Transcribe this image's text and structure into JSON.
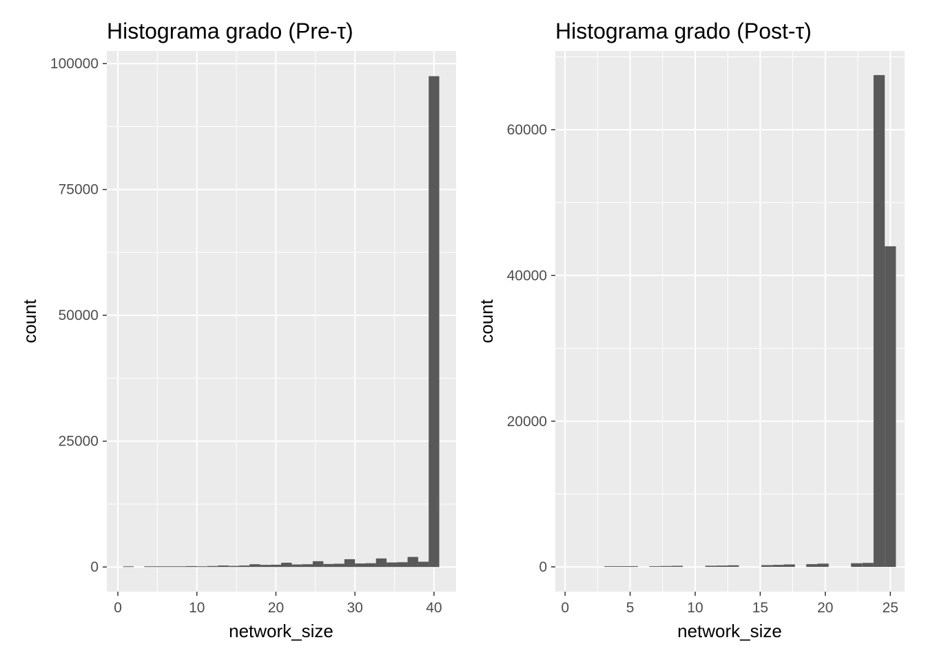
{
  "chart_data": [
    {
      "type": "bar",
      "title": "Histograma grado (Pre-τ)",
      "xlabel": "network_size",
      "ylabel": "count",
      "xlim": [
        -1.4,
        42.8
      ],
      "ylim": [
        -4900,
        102500
      ],
      "x_ticks": [
        0,
        10,
        20,
        30,
        40
      ],
      "x_tick_labels": [
        "0",
        "10",
        "20",
        "30",
        "40"
      ],
      "y_ticks": [
        0,
        25000,
        50000,
        75000,
        100000
      ],
      "y_tick_labels": [
        "0",
        "25000",
        "50000",
        "75000",
        "100000"
      ],
      "bin_width": 1.34,
      "bin_centers": [
        1.33,
        2.67,
        4.0,
        5.33,
        6.67,
        8.0,
        9.33,
        10.67,
        12.0,
        13.33,
        14.67,
        16.0,
        17.33,
        18.67,
        20.0,
        21.33,
        22.67,
        24.0,
        25.33,
        26.67,
        28.0,
        29.33,
        30.67,
        32.0,
        33.33,
        34.67,
        36.0,
        37.33,
        38.67,
        40.0
      ],
      "values": [
        60,
        0,
        80,
        90,
        110,
        120,
        180,
        140,
        200,
        300,
        220,
        300,
        550,
        420,
        450,
        850,
        500,
        550,
        1150,
        600,
        650,
        1550,
        700,
        750,
        1700,
        900,
        950,
        2000,
        1050,
        97500
      ],
      "bar_color": "#595959",
      "panel_background": "#ebebeb",
      "grid": true,
      "legend": "none"
    },
    {
      "type": "bar",
      "title": "Histograma grado (Post-τ)",
      "xlabel": "network_size",
      "ylabel": "count",
      "xlim": [
        -0.75,
        26.1
      ],
      "ylim": [
        -3400,
        70800
      ],
      "x_ticks": [
        0,
        5,
        10,
        15,
        20,
        25
      ],
      "x_tick_labels": [
        "0",
        "5",
        "10",
        "15",
        "20",
        "25"
      ],
      "y_ticks": [
        0,
        20000,
        40000,
        60000
      ],
      "y_tick_labels": [
        "0",
        "20000",
        "40000",
        "60000"
      ],
      "bin_width": 0.86,
      "bin_centers": [
        0.0,
        0.86,
        1.72,
        2.59,
        3.45,
        4.31,
        5.17,
        6.03,
        6.9,
        7.76,
        8.62,
        9.48,
        10.34,
        11.21,
        12.07,
        12.93,
        13.79,
        14.66,
        15.52,
        16.38,
        17.24,
        18.1,
        18.97,
        19.83,
        20.69,
        21.55,
        22.41,
        23.28,
        24.14,
        25.0
      ],
      "values": [
        0,
        0,
        0,
        0,
        60,
        90,
        100,
        0,
        80,
        120,
        150,
        0,
        0,
        160,
        180,
        220,
        0,
        0,
        240,
        280,
        340,
        0,
        380,
        450,
        0,
        0,
        500,
        550,
        67500,
        44000
      ],
      "bar_color": "#595959",
      "panel_background": "#ebebeb",
      "grid": true,
      "legend": "none"
    }
  ]
}
